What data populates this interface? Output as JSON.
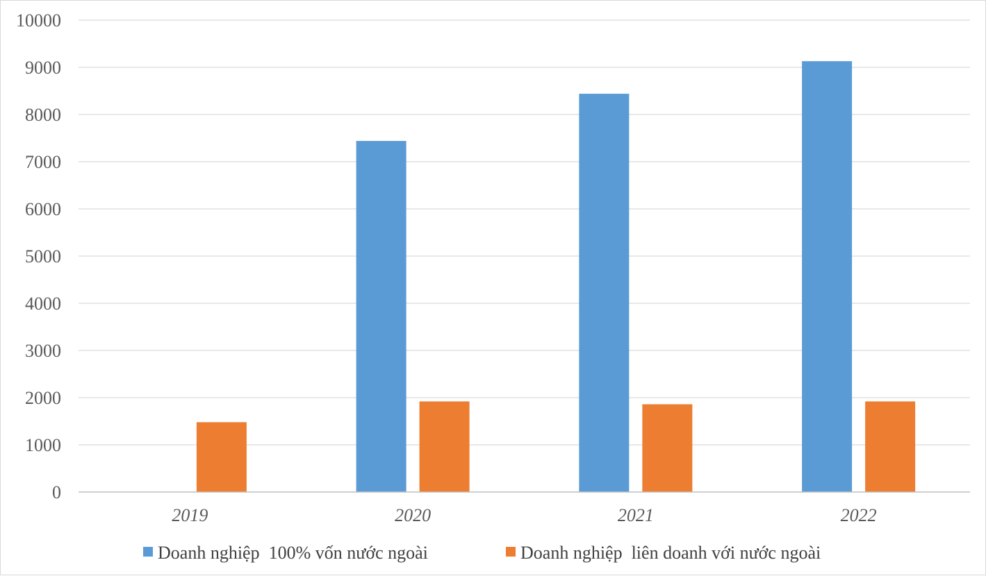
{
  "chart_data": {
    "type": "bar",
    "categories": [
      "2019",
      "2020",
      "2021",
      "2022"
    ],
    "series": [
      {
        "name": "Doanh nghiệp  100% vốn nước ngoài",
        "values": [
          0,
          7440,
          8440,
          9130
        ],
        "color": "#5b9bd5"
      },
      {
        "name": "Doanh nghiệp  liên doanh với nước ngoài",
        "values": [
          1480,
          1920,
          1860,
          1920
        ],
        "color": "#ed7d31"
      }
    ],
    "yticks": [
      "0",
      "1000",
      "2000",
      "3000",
      "4000",
      "5000",
      "6000",
      "7000",
      "8000",
      "9000",
      "10000"
    ],
    "ylim": [
      0,
      10000
    ],
    "grid": true,
    "legend_position": "bottom",
    "title": "",
    "xlabel": "",
    "ylabel": ""
  }
}
